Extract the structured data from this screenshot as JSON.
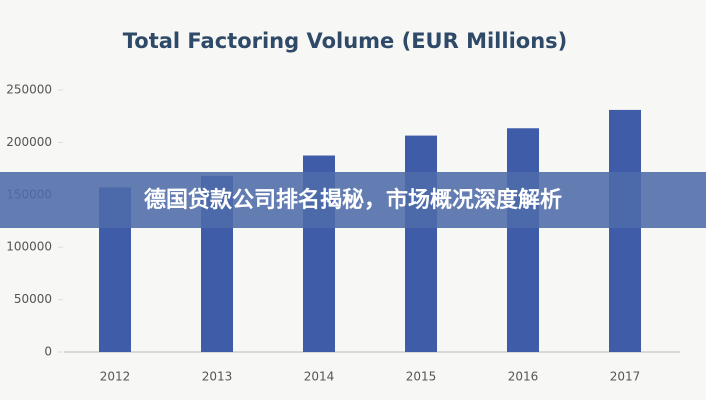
{
  "chart_data": {
    "type": "bar",
    "title": "Total Factoring Volume (EUR Millions)",
    "categories": [
      "2012",
      "2013",
      "2014",
      "2015",
      "2016",
      "2017"
    ],
    "values": [
      157000,
      168000,
      187500,
      206500,
      213500,
      231000
    ],
    "color": "#3f5ca8",
    "ylim": [
      0,
      250000
    ],
    "yticks": [
      0,
      50000,
      100000,
      150000,
      200000,
      250000
    ],
    "grid": false
  },
  "banner": {
    "text": "德国贷款公司排名揭秘，市场概况深度解析"
  }
}
